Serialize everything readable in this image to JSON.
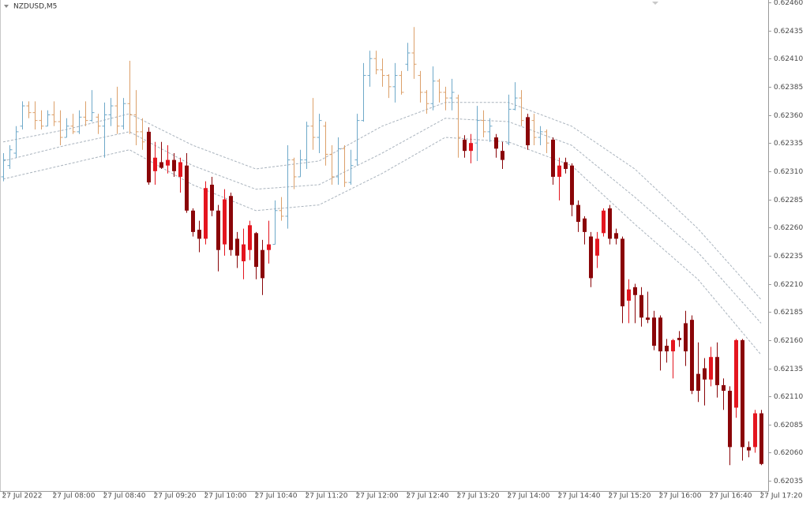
{
  "chart_data": {
    "type": "candlestick",
    "title": "NZDUSD,M5",
    "open": [
      0.62305,
      0.62315,
      0.62326,
      0.6235,
      0.62368,
      0.62362,
      0.62355,
      0.6235,
      0.6236,
      0.62354,
      0.6234,
      0.6235,
      0.62345,
      0.62358,
      0.62355,
      0.62358,
      0.6235,
      0.6236,
      0.62368,
      0.6235,
      0.6237,
      0.6236,
      0.62345,
      0.62345,
      0.6231,
      0.62318,
      0.62315,
      0.6232,
      0.62305,
      0.62315,
      0.62275,
      0.62258,
      0.6225,
      0.62298,
      0.62275,
      0.62245,
      0.62288,
      0.6225,
      0.6223,
      0.6224,
      0.62255,
      0.6224,
      0.6224,
      0.62245,
      0.62275,
      0.6227,
      0.6232,
      0.62305,
      0.6232,
      0.6235,
      0.6234,
      0.6235,
      0.62325,
      0.62305,
      0.6233,
      0.623,
      0.6232,
      0.62355,
      0.62395,
      0.6241,
      0.624,
      0.62395,
      0.62385,
      0.62395,
      0.62405,
      0.62415,
      0.62395,
      0.6238,
      0.6237,
      0.6239,
      0.6238,
      0.62375,
      0.62375,
      0.62338,
      0.62328,
      0.62335,
      0.62355,
      0.62345,
      0.6234,
      0.62328,
      0.62335,
      0.62365,
      0.62375,
      0.62358,
      0.62355,
      0.6234,
      0.62345,
      0.62338,
      0.62305,
      0.62318,
      0.62315,
      0.6228,
      0.62268,
      0.62252,
      0.62235,
      0.62255,
      0.62277,
      0.62255,
      0.6225,
      0.62195,
      0.62207,
      0.622,
      0.6218,
      0.6218,
      0.6218,
      0.62155,
      0.6215,
      0.62162,
      0.62175,
      0.62178,
      0.6213,
      0.62135,
      0.62125,
      0.62145,
      0.6212,
      0.62115,
      0.621,
      0.6216,
      0.62065,
      0.62065,
      0.62095
    ],
    "high": [
      0.62326,
      0.62333,
      0.6235,
      0.62372,
      0.62372,
      0.62372,
      0.62364,
      0.62364,
      0.62372,
      0.62364,
      0.62357,
      0.62361,
      0.62364,
      0.62372,
      0.62382,
      0.62361,
      0.62371,
      0.62375,
      0.62385,
      0.62375,
      0.62408,
      0.62382,
      0.62357,
      0.62349,
      0.62336,
      0.62336,
      0.62333,
      0.62326,
      0.62322,
      0.62326,
      0.62277,
      0.62266,
      0.62301,
      0.62305,
      0.6228,
      0.62294,
      0.62291,
      0.62256,
      0.62259,
      0.62266,
      0.62256,
      0.62249,
      0.62266,
      0.62284,
      0.62287,
      0.62333,
      0.62322,
      0.62329,
      0.62354,
      0.62375,
      0.62361,
      0.62354,
      0.62333,
      0.6234,
      0.62333,
      0.62329,
      0.62361,
      0.62406,
      0.62417,
      0.62417,
      0.6241,
      0.62396,
      0.62406,
      0.62399,
      0.62424,
      0.62438,
      0.62399,
      0.62382,
      0.62403,
      0.62392,
      0.62385,
      0.62392,
      0.62378,
      0.62342,
      0.62343,
      0.62368,
      0.62364,
      0.62357,
      0.62343,
      0.62336,
      0.62378,
      0.62389,
      0.62382,
      0.62361,
      0.62361,
      0.6235,
      0.62347,
      0.6234,
      0.62322,
      0.62322,
      0.62317,
      0.62284,
      0.6227,
      0.62256,
      0.62256,
      0.62277,
      0.6228,
      0.62259,
      0.62252,
      0.62214,
      0.6221,
      0.62207,
      0.62203,
      0.62186,
      0.62182,
      0.62161,
      0.62161,
      0.62168,
      0.62186,
      0.62182,
      0.62158,
      0.62144,
      0.62154,
      0.62158,
      0.62126,
      0.62119,
      0.62161,
      0.62161,
      0.6207,
      0.62098,
      0.62098
    ],
    "low": [
      0.62301,
      0.62312,
      0.62322,
      0.62347,
      0.62357,
      0.62347,
      0.62347,
      0.6235,
      0.6235,
      0.62333,
      0.6234,
      0.62343,
      0.62343,
      0.6235,
      0.62354,
      0.62343,
      0.62322,
      0.6235,
      0.62343,
      0.62347,
      0.62343,
      0.62333,
      0.62329,
      0.62298,
      0.62298,
      0.62312,
      0.62308,
      0.62305,
      0.62291,
      0.62273,
      0.62252,
      0.62238,
      0.62245,
      0.6227,
      0.62221,
      0.62235,
      0.62235,
      0.62224,
      0.62214,
      0.62231,
      0.62214,
      0.622,
      0.62228,
      0.62245,
      0.62266,
      0.62259,
      0.62294,
      0.62305,
      0.62312,
      0.62329,
      0.62326,
      0.62315,
      0.62298,
      0.62298,
      0.62296,
      0.62298,
      0.62315,
      0.62354,
      0.62385,
      0.62396,
      0.62385,
      0.62375,
      0.62371,
      0.62378,
      0.62399,
      0.62392,
      0.62371,
      0.62361,
      0.62364,
      0.62371,
      0.62364,
      0.62364,
      0.62322,
      0.62322,
      0.62317,
      0.62319,
      0.6234,
      0.62336,
      0.62322,
      0.62312,
      0.62333,
      0.62364,
      0.6235,
      0.62329,
      0.62333,
      0.62333,
      0.62326,
      0.62298,
      0.62284,
      0.62308,
      0.6227,
      0.62256,
      0.62245,
      0.62207,
      0.62224,
      0.62252,
      0.62245,
      0.62245,
      0.62175,
      0.62175,
      0.62175,
      0.62172,
      0.62175,
      0.62151,
      0.62133,
      0.6214,
      0.62126,
      0.62154,
      0.62137,
      0.62112,
      0.62105,
      0.62102,
      0.62119,
      0.62109,
      0.62098,
      0.62049,
      0.62091,
      0.62053,
      0.62056,
      0.6206,
      0.62049
    ],
    "close": [
      0.6232,
      0.62329,
      0.62345,
      0.62368,
      0.62362,
      0.62355,
      0.6235,
      0.6236,
      0.62354,
      0.6234,
      0.6235,
      0.62345,
      0.62358,
      0.62355,
      0.62362,
      0.6235,
      0.6236,
      0.62368,
      0.6235,
      0.6237,
      0.6236,
      0.62345,
      0.62336,
      0.623,
      0.62322,
      0.62313,
      0.6232,
      0.6231,
      0.62318,
      0.62275,
      0.62256,
      0.6225,
      0.62295,
      0.62275,
      0.6224,
      0.62285,
      0.6224,
      0.62235,
      0.62245,
      0.62262,
      0.62225,
      0.62215,
      0.62245,
      0.62275,
      0.6227,
      0.6232,
      0.62305,
      0.6232,
      0.6235,
      0.6234,
      0.62355,
      0.62325,
      0.62305,
      0.6233,
      0.623,
      0.62315,
      0.62355,
      0.62395,
      0.6241,
      0.624,
      0.62395,
      0.62385,
      0.62395,
      0.6238,
      0.62415,
      0.62405,
      0.6238,
      0.6237,
      0.6239,
      0.6238,
      0.62375,
      0.6238,
      0.6234,
      0.62328,
      0.62335,
      0.62355,
      0.62345,
      0.6235,
      0.6233,
      0.6232,
      0.62365,
      0.62375,
      0.62355,
      0.62333,
      0.6234,
      0.62345,
      0.62335,
      0.62305,
      0.62315,
      0.62312,
      0.6228,
      0.62265,
      0.62256,
      0.62215,
      0.6225,
      0.62275,
      0.6225,
      0.6225,
      0.6219,
      0.62205,
      0.622,
      0.6218,
      0.62178,
      0.62155,
      0.6215,
      0.6215,
      0.6216,
      0.6216,
      0.6215,
      0.62115,
      0.62115,
      0.62125,
      0.62145,
      0.6212,
      0.62115,
      0.62065,
      0.6216,
      0.62065,
      0.62062,
      0.62095,
      0.6205
    ],
    "kinds": [
      "bar",
      "bar",
      "bar",
      "bar",
      "bar",
      "bar",
      "bar",
      "bar",
      "bar",
      "bar",
      "bar",
      "bar",
      "bar",
      "bar",
      "bar",
      "bar",
      "bar",
      "bar",
      "bar",
      "bar",
      "bar",
      "bar",
      "bar",
      "candle",
      "candle",
      "candle",
      "candle",
      "candle",
      "candle",
      "candle",
      "candle",
      "candle",
      "candle",
      "candle",
      "candle",
      "candle",
      "candle",
      "candle",
      "candle",
      "candle",
      "candle",
      "candle",
      "candle",
      "bar",
      "bar",
      "bar",
      "bar",
      "bar",
      "bar",
      "bar",
      "bar",
      "bar",
      "bar",
      "bar",
      "bar",
      "bar",
      "bar",
      "bar",
      "bar",
      "bar",
      "bar",
      "bar",
      "bar",
      "bar",
      "bar",
      "bar",
      "bar",
      "bar",
      "bar",
      "bar",
      "bar",
      "bar",
      "bar",
      "candle",
      "candle",
      "bar",
      "bar",
      "bar",
      "candle",
      "candle",
      "bar",
      "bar",
      "bar",
      "candle",
      "bar",
      "bar",
      "bar",
      "candle",
      "candle",
      "candle",
      "candle",
      "candle",
      "candle",
      "candle",
      "candle",
      "candle",
      "candle",
      "candle",
      "candle",
      "candle",
      "candle",
      "candle",
      "candle",
      "candle",
      "candle",
      "candle",
      "candle",
      "candle",
      "candle",
      "candle",
      "candle",
      "candle",
      "candle",
      "candle",
      "candle",
      "candle",
      "candle",
      "candle",
      "candle",
      "candle",
      "candle"
    ],
    "colors": {
      "bar_up": "#6fa9c9",
      "bar_down": "#dca06a",
      "candle_up": "#e4151f",
      "candle_down": "#8a0508"
    },
    "bands": {
      "x": [
        0,
        10,
        20,
        30,
        40,
        50,
        60,
        70,
        80,
        90,
        100,
        110,
        120
      ],
      "color": "#a9b3bd",
      "series": [
        {
          "values": [
            0.62336,
            0.62347,
            0.62361,
            0.62333,
            0.62312,
            0.62319,
            0.6235,
            0.62371,
            0.62371,
            0.6235,
            0.62312,
            0.62259,
            0.62196
          ]
        },
        {
          "values": [
            0.62319,
            0.62333,
            0.62345,
            0.62315,
            0.62294,
            0.62298,
            0.62326,
            0.62357,
            0.62354,
            0.62333,
            0.62287,
            0.62238,
            0.62175
          ]
        },
        {
          "values": [
            0.62303,
            0.62316,
            0.62329,
            0.62298,
            0.62275,
            0.6228,
            0.62308,
            0.6234,
            0.62336,
            0.62315,
            0.62263,
            0.62214,
            0.62147
          ]
        }
      ]
    },
    "xlim": [
      -0.5,
      121
    ],
    "xticks": [
      {
        "value": 0,
        "label": "27 Jul 2022"
      },
      {
        "value": 8,
        "label": "27 Jul 08:00"
      },
      {
        "value": 16,
        "label": "27 Jul 08:40"
      },
      {
        "value": 24,
        "label": "27 Jul 09:20"
      },
      {
        "value": 32,
        "label": "27 Jul 10:00"
      },
      {
        "value": 40,
        "label": "27 Jul 10:40"
      },
      {
        "value": 48,
        "label": "27 Jul 11:20"
      },
      {
        "value": 56,
        "label": "27 Jul 12:00"
      },
      {
        "value": 64,
        "label": "27 Jul 12:40"
      },
      {
        "value": 72,
        "label": "27 Jul 13:20"
      },
      {
        "value": 80,
        "label": "27 Jul 14:00"
      },
      {
        "value": 88,
        "label": "27 Jul 14:40"
      },
      {
        "value": 96,
        "label": "27 Jul 15:20"
      },
      {
        "value": 104,
        "label": "27 Jul 16:00"
      },
      {
        "value": 112,
        "label": "27 Jul 16:40"
      },
      {
        "value": 120,
        "label": "27 Jul 17:20"
      }
    ],
    "ylim": [
      0.62026,
      0.62462
    ],
    "yticks": [
      {
        "value": 0.6246,
        "label": "0.62460"
      },
      0.62435,
      {
        "value": 0.6241,
        "label": "0.62410"
      },
      0.62385,
      {
        "value": 0.6236,
        "label": "0.62360"
      },
      0.62335,
      {
        "value": 0.6231,
        "label": "0.62310"
      },
      0.62285,
      {
        "value": 0.6226,
        "label": "0.62260"
      },
      0.62235,
      {
        "value": 0.6221,
        "label": "0.62210"
      },
      0.62185,
      {
        "value": 0.6216,
        "label": "0.62160"
      },
      0.62135,
      {
        "value": 0.6211,
        "label": "0.62110"
      },
      0.62085,
      {
        "value": 0.6206,
        "label": "0.62060"
      },
      0.62035
    ]
  }
}
